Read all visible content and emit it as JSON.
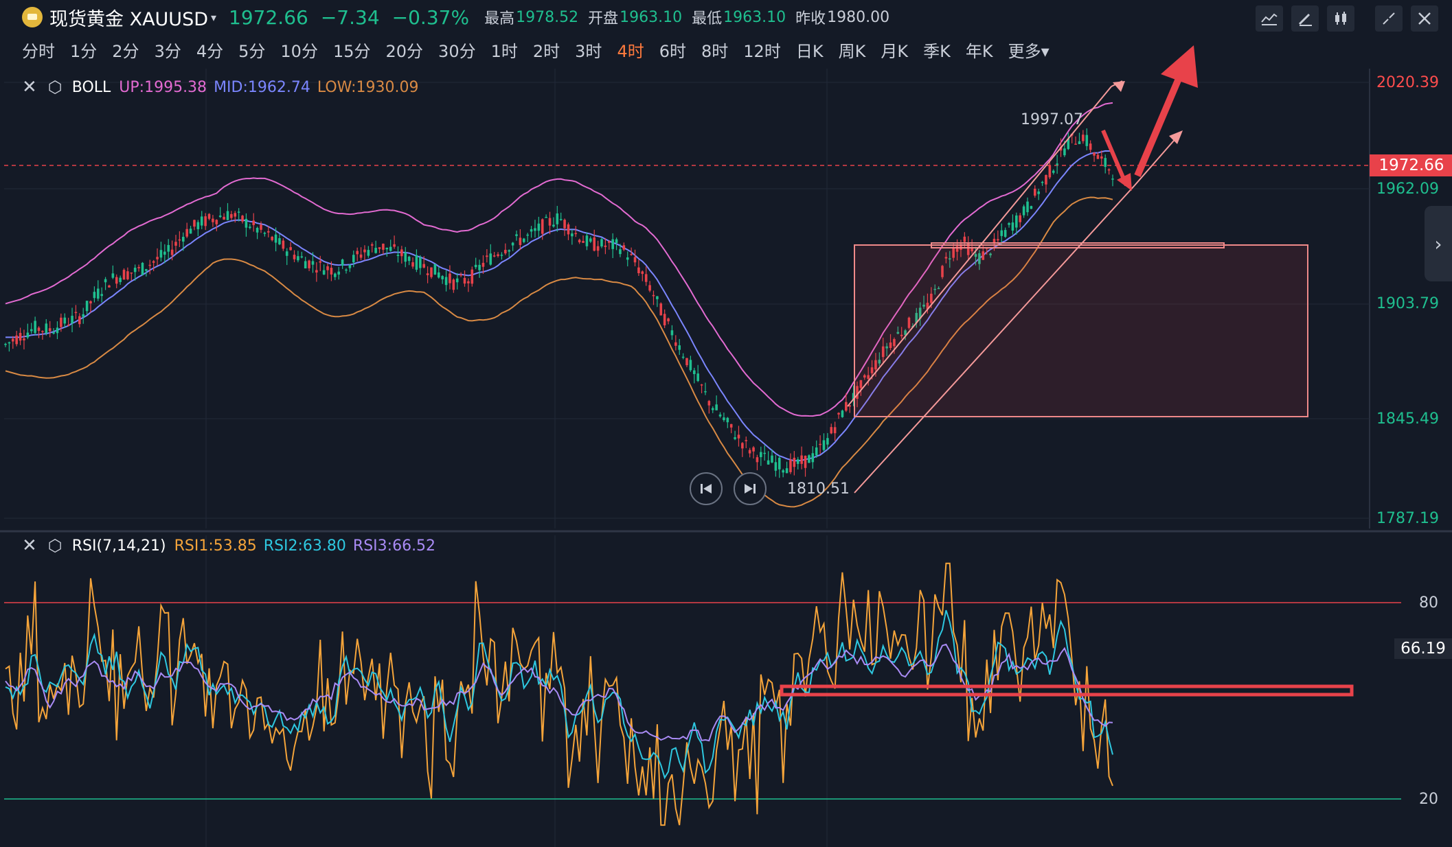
{
  "header": {
    "instrument": "现货黄金 XAUUSD",
    "caret": "▾",
    "price": "1972.66",
    "change": "−7.34",
    "change_pct": "−0.37%",
    "high_label": "最高",
    "high_value": "1978.52",
    "open_label": "开盘",
    "open_value": "1963.10",
    "low_label": "最低",
    "low_value": "1963.10",
    "prev_close_label": "昨收",
    "prev_close_value": "1980.00"
  },
  "toolbar": {
    "icons": [
      "indicator-icon",
      "draw-pen-icon",
      "candle-style-icon",
      "fullscreen-icon",
      "close-icon"
    ]
  },
  "periods": [
    {
      "label": "分时"
    },
    {
      "label": "1分"
    },
    {
      "label": "2分"
    },
    {
      "label": "3分"
    },
    {
      "label": "4分"
    },
    {
      "label": "5分"
    },
    {
      "label": "10分"
    },
    {
      "label": "15分"
    },
    {
      "label": "20分"
    },
    {
      "label": "30分"
    },
    {
      "label": "1时"
    },
    {
      "label": "2时"
    },
    {
      "label": "3时"
    },
    {
      "label": "4时",
      "active": true
    },
    {
      "label": "6时"
    },
    {
      "label": "8时"
    },
    {
      "label": "12时"
    },
    {
      "label": "日K"
    },
    {
      "label": "周K"
    },
    {
      "label": "月K"
    },
    {
      "label": "季K"
    },
    {
      "label": "年K"
    },
    {
      "label": "更多▾"
    }
  ],
  "boll": {
    "name": "BOLL",
    "up_label": "UP:1995.38",
    "mid_label": "MID:1962.74",
    "low_label": "LOW:1930.09",
    "colors": {
      "up": "#e36bd2",
      "mid": "#7b86ff",
      "low": "#d98a44"
    }
  },
  "rsi": {
    "name": "RSI(7,14,21)",
    "rsi1_label": "RSI1:53.85",
    "rsi2_label": "RSI2:63.80",
    "rsi3_label": "RSI3:66.52",
    "colors": {
      "rsi1": "#f5a43a",
      "rsi2": "#2ec8e0",
      "rsi3": "#a98bf5"
    },
    "current": "66.19",
    "levels": [
      "80",
      "20"
    ]
  },
  "price_axis": [
    "2020.39",
    "1962.09",
    "1903.79",
    "1845.49",
    "1787.19"
  ],
  "current_price_tag": "1972.66",
  "markers": {
    "high": "1997.07",
    "low": "1810.51"
  },
  "playback": {
    "prev_icon": "skip-back-icon",
    "next_icon": "skip-forward-icon"
  },
  "colors": {
    "up_candle": "#1fbf8f",
    "down_candle": "#e8424a",
    "annotation": "#e8424a"
  },
  "chart_data": {
    "type": "candlestick",
    "timeframe": "4时",
    "ylim": [
      1787.19,
      2020.39
    ],
    "series_close": [
      1880,
      1885,
      1889,
      1888,
      1892,
      1895,
      1906,
      1915,
      1918,
      1920,
      1925,
      1930,
      1940,
      1945,
      1948,
      1950,
      1946,
      1941,
      1936,
      1930,
      1925,
      1922,
      1920,
      1924,
      1930,
      1933,
      1930,
      1926,
      1922,
      1918,
      1913,
      1915,
      1924,
      1930,
      1935,
      1938,
      1944,
      1948,
      1940,
      1934,
      1933,
      1933,
      1925,
      1912,
      1895,
      1880,
      1865,
      1850,
      1840,
      1830,
      1822,
      1818,
      1815,
      1816,
      1820,
      1830,
      1845,
      1855,
      1868,
      1880,
      1888,
      1895,
      1905,
      1928,
      1935,
      1926,
      1932,
      1942,
      1950,
      1962,
      1975,
      1988,
      1992,
      1980,
      1972.66
    ],
    "rsi_levels": [
      80,
      20
    ]
  }
}
